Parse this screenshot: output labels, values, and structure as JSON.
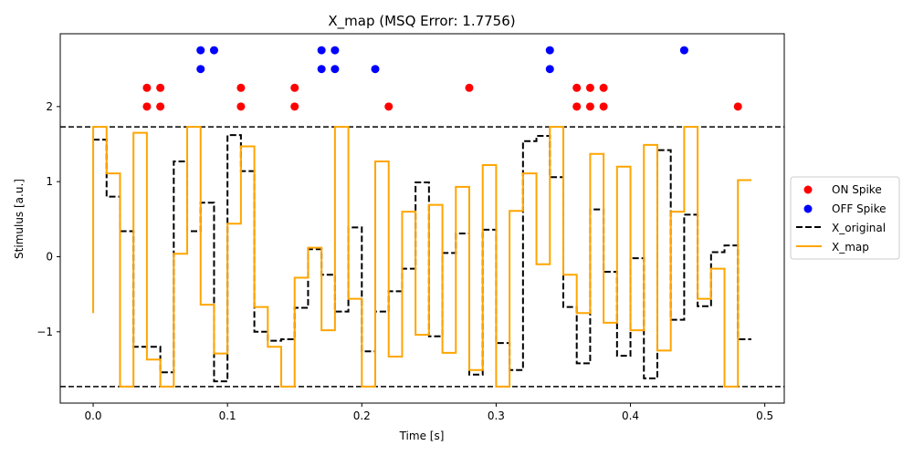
{
  "chart_data": {
    "type": "line",
    "title": "X_map (MSQ Error: 1.7756)",
    "xlabel": "Time [s]",
    "ylabel": "Stimulus [a.u.]",
    "xlim": [
      -0.0245,
      0.5145
    ],
    "ylim": [
      -1.95,
      2.97
    ],
    "xticks": [
      0.0,
      0.1,
      0.2,
      0.3,
      0.4,
      0.5
    ],
    "xtick_labels": [
      "0.0",
      "0.1",
      "0.2",
      "0.3",
      "0.4",
      "0.5"
    ],
    "yticks": [
      -1,
      0,
      1,
      2
    ],
    "ytick_labels": [
      "−1",
      "0",
      "1",
      "2"
    ],
    "threshold_lines": [
      1.73,
      -1.73
    ],
    "legend_position": "right",
    "grid": false,
    "series": [
      {
        "name": "ON Spike",
        "kind": "scatter",
        "color": "#ff0000",
        "points": [
          [
            0.04,
            2.0
          ],
          [
            0.04,
            2.25
          ],
          [
            0.05,
            2.0
          ],
          [
            0.05,
            2.25
          ],
          [
            0.11,
            2.0
          ],
          [
            0.11,
            2.25
          ],
          [
            0.15,
            2.0
          ],
          [
            0.15,
            2.25
          ],
          [
            0.22,
            2.0
          ],
          [
            0.28,
            2.25
          ],
          [
            0.36,
            2.0
          ],
          [
            0.36,
            2.25
          ],
          [
            0.37,
            2.0
          ],
          [
            0.37,
            2.25
          ],
          [
            0.38,
            2.0
          ],
          [
            0.38,
            2.25
          ],
          [
            0.48,
            2.0
          ]
        ]
      },
      {
        "name": "OFF Spike",
        "kind": "scatter",
        "color": "#0000ff",
        "points": [
          [
            0.08,
            2.5
          ],
          [
            0.08,
            2.75
          ],
          [
            0.09,
            2.75
          ],
          [
            0.17,
            2.5
          ],
          [
            0.17,
            2.75
          ],
          [
            0.18,
            2.5
          ],
          [
            0.18,
            2.75
          ],
          [
            0.21,
            2.5
          ],
          [
            0.34,
            2.5
          ],
          [
            0.34,
            2.75
          ],
          [
            0.44,
            2.75
          ]
        ]
      },
      {
        "name": "X_original",
        "kind": "step",
        "color": "#000000",
        "dashed": true,
        "x": [
          0.0,
          0.01,
          0.02,
          0.03,
          0.04,
          0.05,
          0.06,
          0.07,
          0.08,
          0.09,
          0.1,
          0.11,
          0.12,
          0.13,
          0.14,
          0.15,
          0.16,
          0.17,
          0.18,
          0.19,
          0.2,
          0.21,
          0.22,
          0.23,
          0.24,
          0.25,
          0.26,
          0.27,
          0.28,
          0.29,
          0.3,
          0.31,
          0.32,
          0.33,
          0.34,
          0.35,
          0.36,
          0.37,
          0.38,
          0.39,
          0.4,
          0.41,
          0.42,
          0.43,
          0.44,
          0.45,
          0.46,
          0.47,
          0.48,
          0.49
        ],
        "y": [
          1.56,
          0.8,
          0.34,
          -1.2,
          -1.2,
          -1.54,
          1.27,
          0.34,
          0.72,
          -1.66,
          1.62,
          1.14,
          -1.0,
          -1.12,
          -1.1,
          -0.68,
          0.1,
          -0.24,
          -0.73,
          0.39,
          -1.26,
          -0.73,
          -0.46,
          -0.16,
          0.99,
          -1.06,
          0.05,
          0.31,
          -1.57,
          0.36,
          -1.15,
          -1.51,
          1.54,
          1.61,
          1.06,
          -0.67,
          -1.42,
          0.63,
          -0.2,
          -1.32,
          -0.02,
          -1.62,
          1.42,
          -0.84,
          0.56,
          -0.66,
          0.06,
          0.15,
          -1.1,
          -1.1
        ]
      },
      {
        "name": "X_map",
        "kind": "step",
        "color": "#ffa500",
        "dashed": false,
        "x0": -0.75,
        "x": [
          0.0,
          0.01,
          0.02,
          0.03,
          0.04,
          0.05,
          0.06,
          0.07,
          0.08,
          0.09,
          0.1,
          0.11,
          0.12,
          0.13,
          0.14,
          0.15,
          0.16,
          0.17,
          0.18,
          0.19,
          0.2,
          0.21,
          0.22,
          0.23,
          0.24,
          0.25,
          0.26,
          0.27,
          0.28,
          0.29,
          0.3,
          0.31,
          0.32,
          0.33,
          0.34,
          0.35,
          0.36,
          0.37,
          0.38,
          0.39,
          0.4,
          0.41,
          0.42,
          0.43,
          0.44,
          0.45,
          0.46,
          0.47,
          0.48,
          0.49
        ],
        "y": [
          1.73,
          1.11,
          -1.73,
          1.65,
          -1.37,
          -1.73,
          0.04,
          1.73,
          -0.64,
          -1.29,
          0.44,
          1.47,
          -0.67,
          -1.2,
          -1.73,
          -0.28,
          0.12,
          -0.98,
          1.73,
          -0.56,
          -1.73,
          1.27,
          -1.33,
          0.6,
          -1.04,
          0.69,
          -1.28,
          0.93,
          -1.51,
          1.22,
          -1.73,
          0.61,
          1.11,
          -0.1,
          1.73,
          -0.24,
          -0.75,
          1.37,
          -0.88,
          1.2,
          -0.98,
          1.49,
          -1.25,
          0.6,
          1.73,
          -0.56,
          -0.16,
          -1.73,
          1.02,
          1.02
        ]
      }
    ]
  }
}
